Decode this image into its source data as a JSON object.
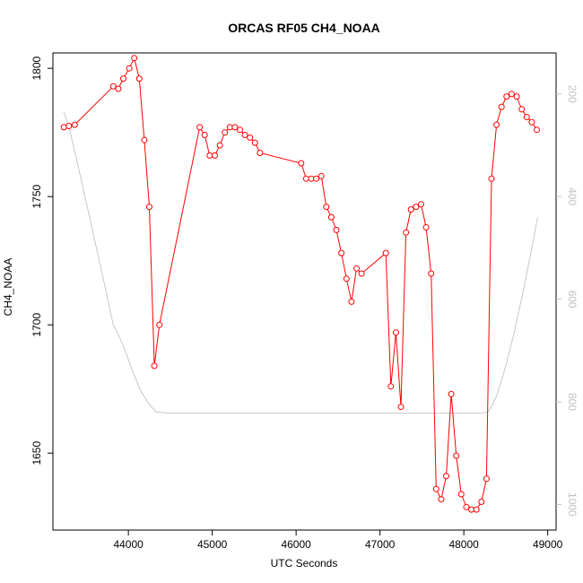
{
  "chart_data": {
    "type": "line",
    "title": "ORCAS RF05 CH4_NOAA",
    "xlabel": "UTC Seconds",
    "ylabel": "CH4_NOAA",
    "xlim": [
      43100,
      49100
    ],
    "ylim": [
      1620,
      1806
    ],
    "y2lim": [
      1050,
      120
    ],
    "x_ticks": [
      "44000",
      "45000",
      "46000",
      "47000",
      "48000",
      "49000"
    ],
    "y_ticks": [
      "1650",
      "1700",
      "1750",
      "1800"
    ],
    "y2_ticks": [
      "200",
      "400",
      "600",
      "800",
      "1000"
    ],
    "grid": false,
    "colors": {
      "ch4": "#ff0000",
      "pressure": "#c8c8c8",
      "axis": "#000000",
      "right_axis": "#c0c0c0"
    },
    "series": [
      {
        "role": "ch4",
        "style": "line+open-circles",
        "x": [
          43230,
          43290,
          43360,
          43820,
          43880,
          43940,
          44010,
          44070,
          44130,
          44190,
          44250,
          44310,
          44370,
          44850,
          44910,
          44970,
          45030,
          45090,
          45150,
          45210,
          45270,
          45330,
          45390,
          45450,
          45510,
          45570,
          46060,
          46120,
          46180,
          46240,
          46300,
          46360,
          46420,
          46480,
          46540,
          46600,
          46660,
          46720,
          46780,
          47070,
          47130,
          47190,
          47250,
          47310,
          47370,
          47430,
          47490,
          47550,
          47610,
          47670,
          47730,
          47790,
          47850,
          47910,
          47970,
          48030,
          48090,
          48150,
          48210,
          48270,
          48330,
          48390,
          48450,
          48510,
          48570,
          48630,
          48690,
          48750,
          48810,
          48870
        ],
        "y": [
          1777,
          1777.5,
          1778,
          1793,
          1792,
          1796,
          1800,
          1804,
          1796,
          1772,
          1746,
          1684,
          1700,
          1777,
          1774,
          1766,
          1766,
          1770,
          1775,
          1777,
          1777,
          1776,
          1774,
          1773,
          1771,
          1767,
          1763,
          1757,
          1757,
          1757,
          1758,
          1746,
          1742,
          1737,
          1728,
          1718,
          1709,
          1722,
          1720,
          1728,
          1676,
          1697,
          1668,
          1736,
          1745,
          1746,
          1747,
          1738,
          1720,
          1636,
          1632,
          1641,
          1673,
          1649,
          1634,
          1629,
          1628,
          1628,
          1631,
          1640,
          1757,
          1778,
          1785,
          1789,
          1790,
          1789,
          1784,
          1781,
          1779,
          1776
        ]
      },
      {
        "role": "pressure",
        "axis": "right",
        "style": "line",
        "x": [
          43230,
          43300,
          43400,
          43550,
          43700,
          43820,
          43870,
          43950,
          44050,
          44150,
          44250,
          44330,
          44500,
          45000,
          45500,
          46000,
          46500,
          47000,
          47500,
          48000,
          48200,
          48280,
          48320,
          48400,
          48500,
          48600,
          48700,
          48800,
          48880
        ],
        "y": [
          235,
          270,
          340,
          450,
          560,
          650,
          665,
          695,
          740,
          780,
          805,
          820,
          822,
          822,
          822,
          822,
          822,
          822,
          822,
          822,
          822,
          820,
          812,
          785,
          730,
          665,
          590,
          510,
          440
        ]
      }
    ]
  }
}
